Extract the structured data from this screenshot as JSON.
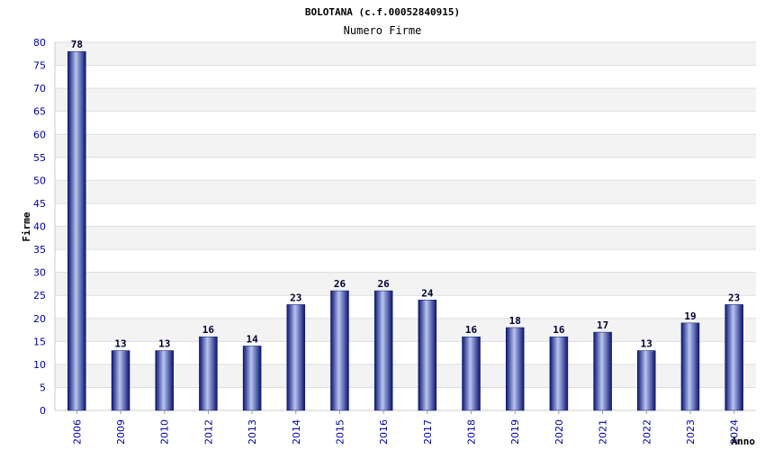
{
  "chart_data": {
    "type": "bar",
    "title": "BOLOTANA (c.f.00052840915)",
    "subtitle": "Numero Firme",
    "xlabel": "Anno",
    "ylabel": "Firme",
    "categories": [
      "2006",
      "2009",
      "2010",
      "2012",
      "2013",
      "2014",
      "2015",
      "2016",
      "2017",
      "2018",
      "2019",
      "2020",
      "2021",
      "2022",
      "2023",
      "2024"
    ],
    "values": [
      78,
      13,
      13,
      16,
      14,
      23,
      26,
      26,
      24,
      16,
      18,
      16,
      17,
      13,
      19,
      23
    ],
    "ylim": [
      0,
      80
    ],
    "ytick_step": 5,
    "grid": true,
    "bar_color": "#1a237e",
    "bar_highlight": "#b8c4f0"
  }
}
